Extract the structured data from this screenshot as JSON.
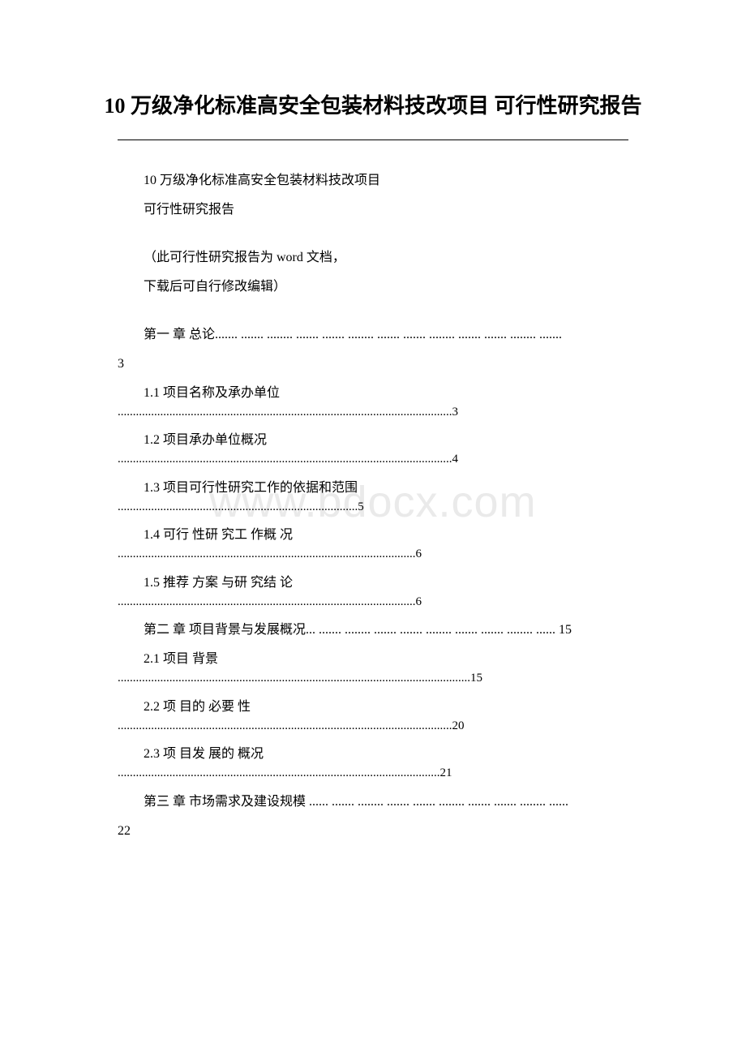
{
  "title": "10 万级净化标准高安全包装材料技改项目 可行性研究报告",
  "watermark": "www.bdocx.com",
  "intro": {
    "line1": "10 万级净化标准高安全包装材料技改项目",
    "line2": "可行性研究报告",
    "note1": "（此可行性研究报告为 word 文档，",
    "note2": "下载后可自行修改编辑）"
  },
  "toc": {
    "ch1": {
      "title": "第一 章  总论....... ....... ........ ....... ....... ........ ....... ....... ........ ....... ....... ........ .......",
      "page": "3"
    },
    "s1_1": {
      "title": "1.1 项目名称及承办单位",
      "dots": "..............................................................................................................3"
    },
    "s1_2": {
      "title": "1.2 项目承办单位概况",
      "dots": "..............................................................................................................4"
    },
    "s1_3": {
      "title": "1.3  项目可行性研究工作的依据和范围",
      "dots": "...............................................................................5"
    },
    "s1_4": {
      "title": "1.4  可行 性研 究工 作概 况",
      "dots": "..................................................................................................6"
    },
    "s1_5": {
      "title": "1.5  推荐 方案 与研 究结 论",
      "dots": "..................................................................................................6"
    },
    "ch2": {
      "title": "第二 章  项目背景与发展概况... ....... ........ ....... ....... ........ ....... ....... ........ ...... 15"
    },
    "s2_1": {
      "title": "2.1  项目 背景",
      "dots": "....................................................................................................................15"
    },
    "s2_2": {
      "title": "2.2 项 目的 必要 性",
      "dots": "..............................................................................................................20"
    },
    "s2_3": {
      "title": "2.3 项 目发 展的 概况",
      "dots": "..........................................................................................................21"
    },
    "ch3": {
      "title": "第三 章  市场需求及建设规模 ...... ....... ........ ....... ....... ........ ....... ....... ........ ......",
      "page": "22"
    }
  },
  "colors": {
    "text": "#000000",
    "background": "#ffffff",
    "watermark": "#eaeaea",
    "divider": "#000000"
  },
  "typography": {
    "title_fontsize": 26,
    "body_fontsize": 16,
    "watermark_fontsize": 54,
    "font_family": "SimSun"
  }
}
